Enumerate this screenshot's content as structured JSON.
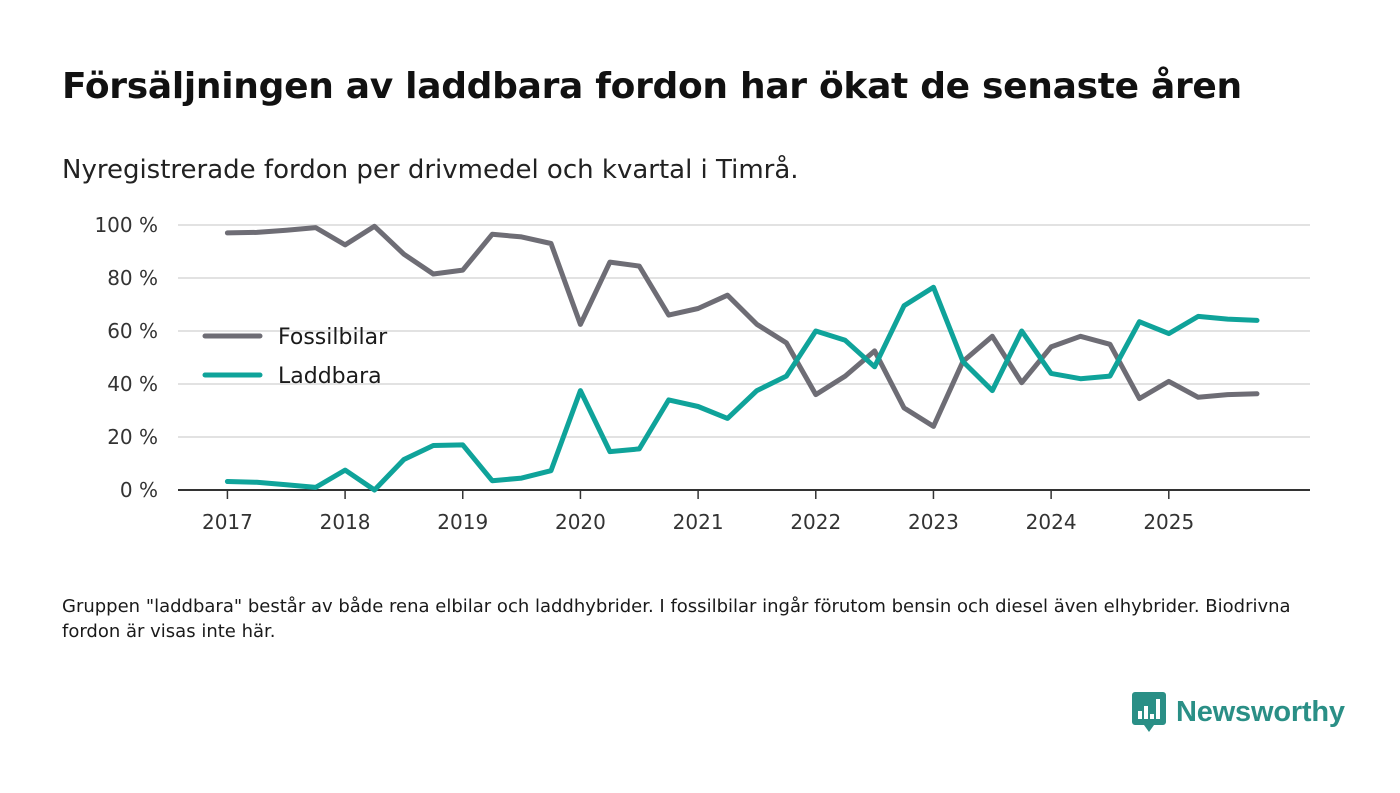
{
  "header": {
    "title": "Försäljningen av laddbara fordon har ökat de senaste åren",
    "subtitle": "Nyregistrerade fordon per drivmedel och kvartal i Timrå."
  },
  "footer": {
    "note": "Gruppen \"laddbara\" består av både rena elbilar och laddhybrider. I fossilbilar ingår förutom bensin och diesel även elhybrider. Biodrivna fordon är visas inte här.",
    "brand": "Newsworthy"
  },
  "colors": {
    "fossil": "#6e6d75",
    "laddbara": "#0fa39a",
    "brand": "#2a8f86",
    "grid": "#d9d9d9",
    "axis": "#333333"
  },
  "chart_data": {
    "type": "line",
    "title": "Försäljningen av laddbara fordon har ökat de senaste åren",
    "subtitle": "Nyregistrerade fordon per drivmedel och kvartal i Timrå.",
    "xlabel": "",
    "ylabel": "",
    "x_unit": "year",
    "x_start": 2017.0,
    "x_step": 0.25,
    "xlim": [
      2016.58,
      2026.2
    ],
    "ylim": [
      0,
      100
    ],
    "y_ticks": [
      0,
      20,
      40,
      60,
      80,
      100
    ],
    "y_tick_labels": [
      "0 %",
      "20 %",
      "40 %",
      "60 %",
      "80 %",
      "100 %"
    ],
    "x_ticks": [
      2017,
      2018,
      2019,
      2020,
      2021,
      2022,
      2023,
      2024,
      2025
    ],
    "x_tick_labels": [
      "2017",
      "2018",
      "2019",
      "2020",
      "2021",
      "2022",
      "2023",
      "2024",
      "2025"
    ],
    "grid": true,
    "legend_position": "left-middle",
    "series": [
      {
        "name": "Fossilbilar",
        "color": "#6e6d75",
        "values": [
          97,
          97.2,
          98,
          99,
          92.5,
          99.5,
          89,
          81.5,
          83,
          96.5,
          95.5,
          93,
          62.5,
          86,
          84.5,
          66,
          68.5,
          73.5,
          62.5,
          55.5,
          36,
          43,
          52.5,
          31,
          24,
          48.5,
          58,
          40.5,
          54,
          58,
          55,
          34.5,
          41,
          35,
          36,
          36.3
        ]
      },
      {
        "name": "Laddbara",
        "color": "#0fa39a",
        "values": [
          3.2,
          2.9,
          2,
          1,
          7.5,
          0,
          11.5,
          16.8,
          17,
          3.5,
          4.5,
          7.3,
          37.5,
          14.5,
          15.5,
          34,
          31.5,
          27,
          37.5,
          43,
          60,
          56.5,
          46.5,
          69.5,
          76.5,
          48.5,
          37.5,
          60,
          44,
          42,
          43,
          63.5,
          59,
          65.5,
          64.5,
          64
        ]
      }
    ]
  }
}
